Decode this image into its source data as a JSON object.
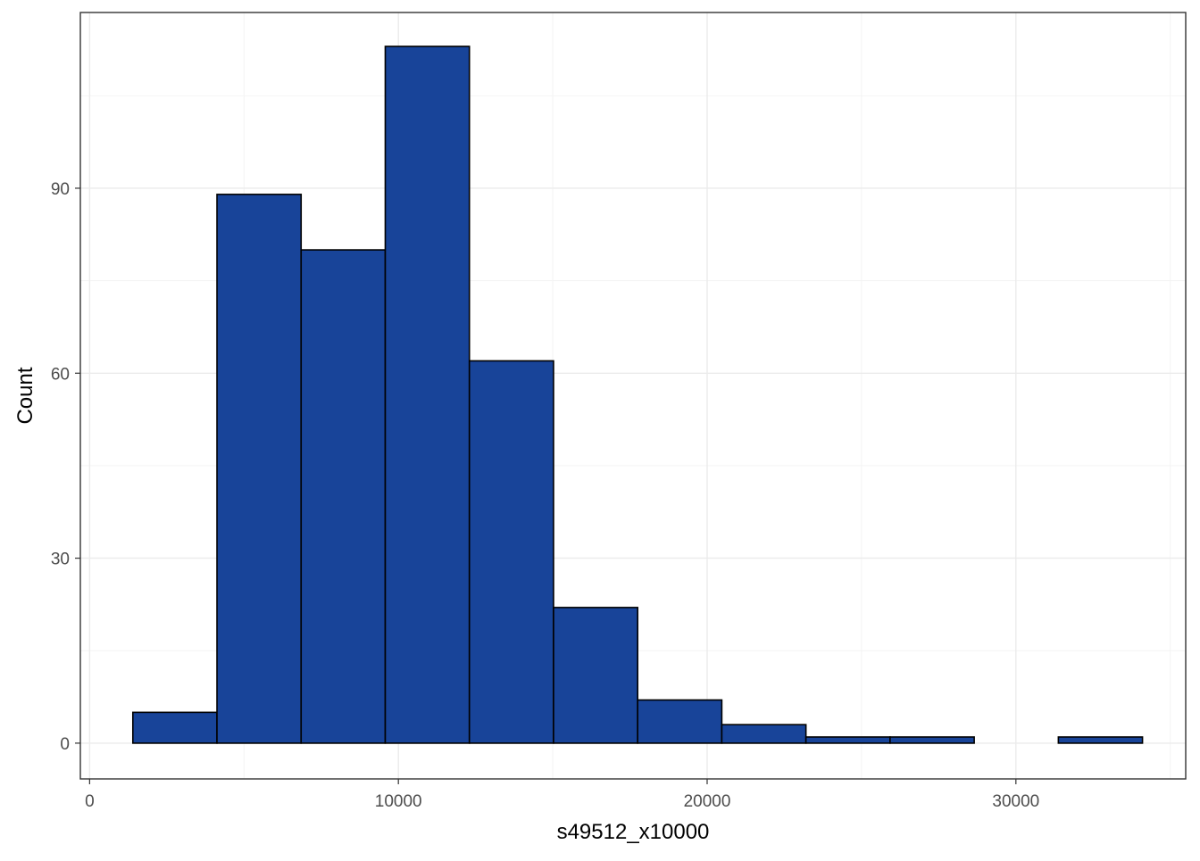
{
  "chart_data": {
    "type": "bar",
    "chart_kind": "histogram",
    "xlabel": "s49512_x10000",
    "ylabel": "Count",
    "xlim": [
      -300,
      35500
    ],
    "ylim": [
      -5.8,
      118.5
    ],
    "x_ticks": [
      0,
      10000,
      20000,
      30000
    ],
    "x_tick_labels": [
      "0",
      "10000",
      "20000",
      "30000"
    ],
    "y_ticks": [
      0,
      30,
      60,
      90
    ],
    "y_tick_labels": [
      "0",
      "30",
      "60",
      "90"
    ],
    "x_minor": [
      5000,
      15000,
      25000,
      35000
    ],
    "y_minor": [
      15,
      45,
      75,
      105
    ],
    "grid": true,
    "bin_width": 2725,
    "bins": [
      {
        "x0": 1400,
        "x1": 4125,
        "count": 5
      },
      {
        "x0": 4125,
        "x1": 6850,
        "count": 89
      },
      {
        "x0": 6850,
        "x1": 9575,
        "count": 80
      },
      {
        "x0": 9575,
        "x1": 12300,
        "count": 113
      },
      {
        "x0": 12300,
        "x1": 15025,
        "count": 62
      },
      {
        "x0": 15025,
        "x1": 17750,
        "count": 22
      },
      {
        "x0": 17750,
        "x1": 20475,
        "count": 7
      },
      {
        "x0": 20475,
        "x1": 23200,
        "count": 3
      },
      {
        "x0": 23200,
        "x1": 25925,
        "count": 1
      },
      {
        "x0": 25925,
        "x1": 28650,
        "count": 1
      },
      {
        "x0": 28650,
        "x1": 31375,
        "count": 0
      },
      {
        "x0": 31375,
        "x1": 34100,
        "count": 1
      }
    ],
    "colors": {
      "bar_fill": "#184499",
      "bar_outline": "#000000",
      "panel_border": "#333333",
      "grid": "#ebebeb"
    }
  }
}
